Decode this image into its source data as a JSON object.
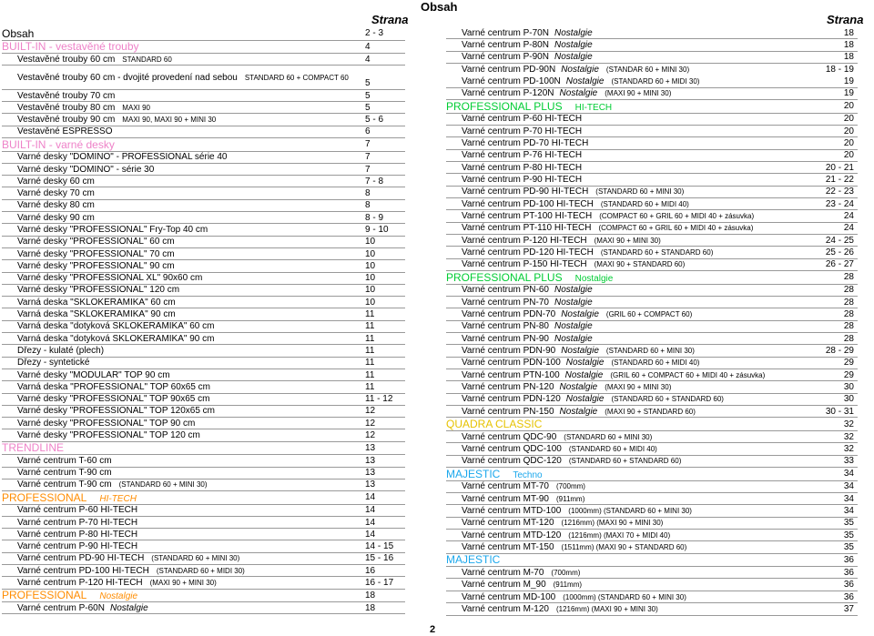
{
  "header": {
    "title": "Obsah",
    "strana_left": "Strana",
    "strana_right": "Strana",
    "page_number": "2"
  },
  "colors": {
    "pink": "#ee82c8",
    "green": "#00cc33",
    "blue": "#3a86ff",
    "orange": "#ff8c00",
    "gold": "#e6c200",
    "cyan": "#1aa7ec"
  },
  "left": [
    {
      "type": "sec",
      "text": "Obsah",
      "page": "2 - 3",
      "color": "black"
    },
    {
      "type": "sec",
      "text": "BUILT-IN - vestavěné trouby",
      "page": "4",
      "color": "pink"
    },
    {
      "type": "item",
      "text": "Vestavěné trouby 60 cm",
      "sub": "STANDARD 60",
      "page": "4"
    },
    {
      "type": "item2",
      "text": "Vestavěné trouby 60 cm - dvojité provedení nad sebou",
      "sub": "STANDARD 60 + COMPACT 60",
      "page": "5"
    },
    {
      "type": "item",
      "text": "Vestavěné trouby 70 cm",
      "sub": "",
      "page": "5"
    },
    {
      "type": "item",
      "text": "Vestavěné trouby 80 cm",
      "sub": "MAXI 90",
      "page": "5"
    },
    {
      "type": "item",
      "text": "Vestavěné trouby 90 cm",
      "sub": "MAXI 90, MAXI 90 + MINI 30",
      "page": "5 - 6"
    },
    {
      "type": "item",
      "text": "Vestavěné ESPRESSO",
      "sub": "",
      "page": "6"
    },
    {
      "type": "sec",
      "text": "BUILT-IN - varné desky",
      "page": "7",
      "color": "pink"
    },
    {
      "type": "item",
      "text": "Varné desky \"DOMINO\" - PROFESSIONAL série 40",
      "sub": "",
      "page": "7"
    },
    {
      "type": "item",
      "text": "Varné desky \"DOMINO\" - série 30",
      "sub": "",
      "page": "7"
    },
    {
      "type": "item",
      "text": "Varné desky 60 cm",
      "sub": "",
      "page": "7 - 8"
    },
    {
      "type": "item",
      "text": "Varné desky 70 cm",
      "sub": "",
      "page": "8"
    },
    {
      "type": "item",
      "text": "Varné desky 80 cm",
      "sub": "",
      "page": "8"
    },
    {
      "type": "item",
      "text": "Varné desky 90 cm",
      "sub": "",
      "page": "8 - 9"
    },
    {
      "type": "item",
      "text": "Varné desky \"PROFESSIONAL\" Fry-Top 40 cm",
      "sub": "",
      "page": "9 - 10"
    },
    {
      "type": "item",
      "text": "Varné desky \"PROFESSIONAL\" 60 cm",
      "sub": "",
      "page": "10"
    },
    {
      "type": "item",
      "text": "Varné desky \"PROFESSIONAL\" 70 cm",
      "sub": "",
      "page": "10"
    },
    {
      "type": "item",
      "text": "Varné desky \"PROFESSIONAL\" 90 cm",
      "sub": "",
      "page": "10"
    },
    {
      "type": "item",
      "text": "Varné desky \"PROFESSIONAL XL\" 90x60 cm",
      "sub": "",
      "page": "10"
    },
    {
      "type": "item",
      "text": "Varné desky \"PROFESSIONAL\" 120 cm",
      "sub": "",
      "page": "10"
    },
    {
      "type": "item",
      "text": "Varná deska \"SKLOKERAMIKA\" 60 cm",
      "sub": "",
      "page": "10"
    },
    {
      "type": "item",
      "text": "Varná deska \"SKLOKERAMIKA\" 90 cm",
      "sub": "",
      "page": "11"
    },
    {
      "type": "item",
      "text": "Varná deska \"dotyková SKLOKERAMIKA\" 60 cm",
      "sub": "",
      "page": "11"
    },
    {
      "type": "item",
      "text": "Varná deska \"dotyková SKLOKERAMIKA\" 90 cm",
      "sub": "",
      "page": "11"
    },
    {
      "type": "item",
      "text": "Dřezy - kulaté (plech)",
      "sub": "",
      "page": "11"
    },
    {
      "type": "item",
      "text": "Dřezy - syntetické",
      "sub": "",
      "page": "11"
    },
    {
      "type": "item",
      "text": "Varné desky \"MODULAR\" TOP 90 cm",
      "sub": "",
      "page": "11"
    },
    {
      "type": "item",
      "text": "Varná deska \"PROFESSIONAL\" TOP 60x65 cm",
      "sub": "",
      "page": "11"
    },
    {
      "type": "item",
      "text": "Varné desky \"PROFESSIONAL\" TOP 90x65 cm",
      "sub": "",
      "page": "11 - 12"
    },
    {
      "type": "item",
      "text": "Varné desky \"PROFESSIONAL\" TOP 120x65 cm",
      "sub": "",
      "page": "12"
    },
    {
      "type": "item",
      "text": "Varné desky \"PROFESSIONAL\" TOP 90 cm",
      "sub": "",
      "page": "12"
    },
    {
      "type": "item",
      "text": "Varné desky \"PROFESSIONAL\" TOP 120 cm",
      "sub": "",
      "page": "12"
    },
    {
      "type": "sec",
      "text": "TRENDLINE",
      "page": "13",
      "color": "pink"
    },
    {
      "type": "item",
      "text": "Varné centrum T-60 cm",
      "sub": "",
      "page": "13"
    },
    {
      "type": "item",
      "text": "Varné centrum T-90 cm",
      "sub": "",
      "page": "13"
    },
    {
      "type": "item",
      "text": "Varné centrum T-90 cm",
      "sub": "(STANDARD 60 + MINI 30)",
      "page": "13"
    },
    {
      "type": "sec",
      "text": "PROFESSIONAL",
      "tag": "HI-TECH",
      "tagItalic": true,
      "page": "14",
      "color": "orange"
    },
    {
      "type": "item",
      "text": "Varné centrum P-60   HI-TECH",
      "sub": "",
      "page": "14"
    },
    {
      "type": "item",
      "text": "Varné centrum P-70   HI-TECH",
      "sub": "",
      "page": "14"
    },
    {
      "type": "item",
      "text": "Varné centrum P-80   HI-TECH",
      "sub": "",
      "page": "14"
    },
    {
      "type": "item",
      "text": "Varné centrum P-90   HI-TECH",
      "sub": "",
      "page": "14 - 15"
    },
    {
      "type": "item",
      "text": "Varné centrum PD-90   HI-TECH",
      "sub": "(STANDARD 60 + MINI 30)",
      "page": "15 - 16"
    },
    {
      "type": "item",
      "text": "Varné centrum PD-100   HI-TECH",
      "sub": "(STANDARD 60 + MIDI 30)",
      "page": "16"
    },
    {
      "type": "item",
      "text": "Varné centrum P-120   HI-TECH",
      "sub": "(MAXI 90 + MINI 30)",
      "page": "16 - 17"
    },
    {
      "type": "sec",
      "text": "PROFESSIONAL",
      "tag": "Nostalgie",
      "tagItalic": true,
      "page": "18",
      "color": "orange"
    },
    {
      "type": "item",
      "text": "Varné centrum P-60N",
      "ital": "Nostalgie",
      "sub": "",
      "page": "18"
    }
  ],
  "right": [
    {
      "type": "item",
      "text": "Varné centrum P-70N",
      "ital": "Nostalgie",
      "sub": "",
      "page": "18"
    },
    {
      "type": "item",
      "text": "Varné centrum P-80N",
      "ital": "Nostalgie",
      "sub": "",
      "page": "18"
    },
    {
      "type": "item",
      "text": "Varné centrum P-90N",
      "ital": "Nostalgie",
      "sub": "",
      "page": "18"
    },
    {
      "type": "item",
      "text": "Varné centrum PD-90N",
      "ital": "Nostalgie",
      "sub": "(STANDAR 60 + MINI 30)",
      "page": "18 - 19",
      "noborder": true
    },
    {
      "type": "item",
      "text": "Varné centrum PD-100N",
      "ital": "Nostalgie",
      "sub": "(STANDARD 60 + MIDI 30)",
      "page": "19"
    },
    {
      "type": "item",
      "text": "Varné centrum P-120N",
      "ital": "Nostalgie",
      "sub": "(MAXI 90 + MINI 30)",
      "page": "19"
    },
    {
      "type": "sec",
      "text": "PROFESSIONAL PLUS",
      "tag": "HI-TECH",
      "page": "20",
      "color": "green"
    },
    {
      "type": "item",
      "text": "Varné centrum P-60   HI-TECH",
      "sub": "",
      "page": "20"
    },
    {
      "type": "item",
      "text": "Varné centrum P-70   HI-TECH",
      "sub": "",
      "page": "20"
    },
    {
      "type": "item",
      "text": "Varné centrum PD-70   HI-TECH",
      "sub": "",
      "page": "20"
    },
    {
      "type": "item",
      "text": "Varné centrum P-76   HI-TECH",
      "sub": "",
      "page": "20"
    },
    {
      "type": "item",
      "text": "Varné centrum P-80   HI-TECH",
      "sub": "",
      "page": "20 - 21"
    },
    {
      "type": "item",
      "text": "Varné centrum P-90   HI-TECH",
      "sub": "",
      "page": "21 - 22"
    },
    {
      "type": "item",
      "text": "Varné centrum PD-90   HI-TECH",
      "sub": "(STANDARD 60 + MINI 30)",
      "page": "22 - 23"
    },
    {
      "type": "item",
      "text": "Varné centrum PD-100   HI-TECH",
      "sub": "(STANDARD 60 + MIDI 40)",
      "page": "23 - 24"
    },
    {
      "type": "item",
      "text": "Varné centrum PT-100   HI-TECH",
      "sub": "(COMPACT 60 + GRIL 60 + MIDI 40 + zásuvka)",
      "page": "24"
    },
    {
      "type": "item",
      "text": "Varné centrum PT-110   HI-TECH",
      "sub": "(COMPACT 60 + GRIL 60 + MIDI 40 + zásuvka)",
      "page": "24"
    },
    {
      "type": "item",
      "text": "Varné centrum P-120   HI-TECH",
      "sub": "(MAXI 90 + MINI 30)",
      "page": "24 - 25"
    },
    {
      "type": "item",
      "text": "Varné centrum PD-120   HI-TECH",
      "sub": "(STANDARD 60 + STANDARD 60)",
      "page": "25 - 26"
    },
    {
      "type": "item",
      "text": "Varné centrum P-150   HI-TECH",
      "sub": "(MAXI 90 + STANDARD 60)",
      "page": "26 - 27"
    },
    {
      "type": "sec",
      "text": "PROFESSIONAL PLUS",
      "tag": "Nostalgie",
      "page": "28",
      "color": "green"
    },
    {
      "type": "item",
      "text": "Varné centrum PN-60",
      "ital": "Nostalgie",
      "sub": "",
      "page": "28"
    },
    {
      "type": "item",
      "text": "Varné centrum PN-70",
      "ital": "Nostalgie",
      "sub": "",
      "page": "28"
    },
    {
      "type": "item",
      "text": "Varné centrum PDN-70",
      "ital": "Nostalgie",
      "sub": "(GRIL 60 + COMPACT 60)",
      "page": "28"
    },
    {
      "type": "item",
      "text": "Varné centrum PN-80",
      "ital": "Nostalgie",
      "sub": "",
      "page": "28"
    },
    {
      "type": "item",
      "text": "Varné centrum PN-90",
      "ital": "Nostalgie",
      "sub": "",
      "page": "28"
    },
    {
      "type": "item",
      "text": "Varné centrum PDN-90",
      "ital": "Nostalgie",
      "sub": "(STANDARD 60 + MINI 30)",
      "page": "28 - 29"
    },
    {
      "type": "item",
      "text": "Varné centrum PDN-100",
      "ital": "Nostalgie",
      "sub": "(STANDARD 60 + MIDI 40)",
      "page": "29"
    },
    {
      "type": "item",
      "text": "Varné centrum PTN-100",
      "ital": "Nostalgie",
      "sub": "(GRIL 60 + COMPACT 60 + MIDI 40 + zásuvka)",
      "page": "29"
    },
    {
      "type": "item",
      "text": "Varné centrum PN-120",
      "ital": "Nostalgie",
      "sub": "(MAXI 90 + MINI 30)",
      "page": "30"
    },
    {
      "type": "item",
      "text": "Varné centrum PDN-120",
      "ital": "Nostalgie",
      "sub": "(STANDARD 60 + STANDARD 60)",
      "page": "30"
    },
    {
      "type": "item",
      "text": "Varné centrum PN-150",
      "ital": "Nostalgie",
      "sub": "(MAXI 90 + STANDARD 60)",
      "page": "30 - 31"
    },
    {
      "type": "sec",
      "text": "QUADRA CLASSIC",
      "page": "32",
      "color": "gold"
    },
    {
      "type": "item",
      "text": "Varné centrum QDC-90",
      "sub": "(STANDARD 60 + MINI 30)",
      "page": "32"
    },
    {
      "type": "item",
      "text": "Varné centrum QDC-100",
      "sub": "(STANDARD 60 + MIDI 40)",
      "page": "32"
    },
    {
      "type": "item",
      "text": "Varné centrum QDC-120",
      "sub": "(STANDARD 60 + STANDARD 60)",
      "page": "33"
    },
    {
      "type": "sec",
      "text": "MAJESTIC",
      "tag": "Techno",
      "page": "34",
      "color": "cyan"
    },
    {
      "type": "item",
      "text": "Varné centrum MT-70",
      "sub": "(700mm)",
      "page": "34"
    },
    {
      "type": "item",
      "text": "Varné centrum MT-90",
      "sub": "(911mm)",
      "page": "34"
    },
    {
      "type": "item",
      "text": "Varné centrum MTD-100",
      "sub": "(1000mm)     (STANDARD 60 + MINI 30)",
      "page": "34"
    },
    {
      "type": "item",
      "text": "Varné centrum MT-120",
      "sub": "(1216mm)     (MAXI 90 + MINI 30)",
      "page": "35"
    },
    {
      "type": "item",
      "text": "Varné centrum MTD-120",
      "sub": "(1216mm)     (MAXI 70 + MIDI 40)",
      "page": "35"
    },
    {
      "type": "item",
      "text": "Varné centrum MT-150",
      "sub": "(1511mm)     (MAXI 90 + STANDARD 60)",
      "page": "35"
    },
    {
      "type": "sec",
      "text": "MAJESTIC",
      "page": "36",
      "color": "cyan"
    },
    {
      "type": "item",
      "text": "Varné centrum M-70",
      "sub": "(700mm)",
      "page": "36"
    },
    {
      "type": "item",
      "text": "Varné centrum M_90",
      "sub": "(911mm)",
      "page": "36"
    },
    {
      "type": "item",
      "text": "Varné centrum MD-100",
      "sub": "(1000mm)     (STANDARD 60 + MINI 30)",
      "page": "36"
    },
    {
      "type": "item",
      "text": "Varné centrum M-120",
      "sub": "(1216mm)     (MAXI 90 + MINI 30)",
      "page": "37"
    }
  ]
}
